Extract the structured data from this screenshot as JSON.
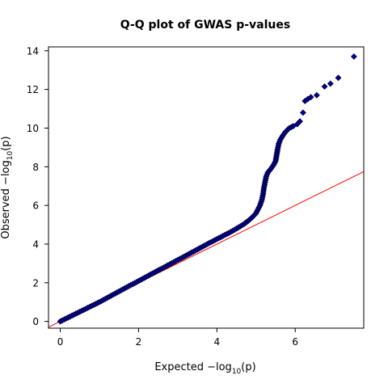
{
  "chart_data": {
    "type": "scatter",
    "title": "Q-Q plot of GWAS p-values",
    "xlabel": {
      "prefix": "Expected  −log",
      "sub": "10",
      "suffix": "(p)"
    },
    "ylabel": {
      "prefix": "Observed  −log",
      "sub": "10",
      "suffix": "(p)"
    },
    "xlim": [
      -0.3,
      7.75
    ],
    "ylim": [
      -0.35,
      14.2
    ],
    "xticks": [
      0,
      2,
      4,
      6
    ],
    "yticks": [
      0,
      2,
      4,
      6,
      8,
      10,
      12,
      14
    ],
    "grid": false,
    "legend": "none",
    "reference_line": {
      "slope": 1,
      "intercept": 0,
      "color": "#ff0000"
    },
    "marker": {
      "shape": "diamond",
      "fill": "#00008b",
      "stroke": "#000033"
    },
    "series": [
      {
        "values": [
          {
            "x": 0.0,
            "y": 0.0
          },
          {
            "x": 0.1,
            "y": 0.1
          },
          {
            "x": 0.2,
            "y": 0.2
          },
          {
            "x": 0.3,
            "y": 0.3
          },
          {
            "x": 0.4,
            "y": 0.4
          },
          {
            "x": 0.5,
            "y": 0.5
          },
          {
            "x": 0.6,
            "y": 0.6
          },
          {
            "x": 0.7,
            "y": 0.7
          },
          {
            "x": 0.8,
            "y": 0.8
          },
          {
            "x": 0.9,
            "y": 0.9
          },
          {
            "x": 1.0,
            "y": 1.0
          },
          {
            "x": 1.1,
            "y": 1.11
          },
          {
            "x": 1.2,
            "y": 1.22
          },
          {
            "x": 1.3,
            "y": 1.33
          },
          {
            "x": 1.4,
            "y": 1.44
          },
          {
            "x": 1.5,
            "y": 1.55
          },
          {
            "x": 1.6,
            "y": 1.66
          },
          {
            "x": 1.7,
            "y": 1.77
          },
          {
            "x": 1.8,
            "y": 1.88
          },
          {
            "x": 1.9,
            "y": 1.98
          },
          {
            "x": 2.0,
            "y": 2.09
          },
          {
            "x": 2.1,
            "y": 2.2
          },
          {
            "x": 2.2,
            "y": 2.31
          },
          {
            "x": 2.3,
            "y": 2.42
          },
          {
            "x": 2.4,
            "y": 2.53
          },
          {
            "x": 2.5,
            "y": 2.64
          },
          {
            "x": 2.6,
            "y": 2.74
          },
          {
            "x": 2.7,
            "y": 2.85
          },
          {
            "x": 2.8,
            "y": 2.96
          },
          {
            "x": 2.9,
            "y": 3.07
          },
          {
            "x": 3.0,
            "y": 3.18
          },
          {
            "x": 3.1,
            "y": 3.28
          },
          {
            "x": 3.2,
            "y": 3.39
          },
          {
            "x": 3.3,
            "y": 3.5
          },
          {
            "x": 3.4,
            "y": 3.61
          },
          {
            "x": 3.5,
            "y": 3.72
          },
          {
            "x": 3.6,
            "y": 3.83
          },
          {
            "x": 3.7,
            "y": 3.94
          },
          {
            "x": 3.8,
            "y": 4.05
          },
          {
            "x": 3.9,
            "y": 4.15
          },
          {
            "x": 4.0,
            "y": 4.26
          },
          {
            "x": 4.1,
            "y": 4.36
          },
          {
            "x": 4.2,
            "y": 4.47
          },
          {
            "x": 4.3,
            "y": 4.57
          },
          {
            "x": 4.4,
            "y": 4.68
          },
          {
            "x": 4.5,
            "y": 4.8
          },
          {
            "x": 4.6,
            "y": 4.92
          },
          {
            "x": 4.7,
            "y": 5.05
          },
          {
            "x": 4.8,
            "y": 5.2
          },
          {
            "x": 4.9,
            "y": 5.38
          },
          {
            "x": 5.0,
            "y": 5.6
          },
          {
            "x": 5.05,
            "y": 5.8
          },
          {
            "x": 5.1,
            "y": 6.0
          },
          {
            "x": 5.15,
            "y": 6.3
          },
          {
            "x": 5.18,
            "y": 6.6
          },
          {
            "x": 5.2,
            "y": 6.9
          },
          {
            "x": 5.23,
            "y": 7.2
          },
          {
            "x": 5.26,
            "y": 7.5
          },
          {
            "x": 5.3,
            "y": 7.7
          },
          {
            "x": 5.38,
            "y": 7.9
          },
          {
            "x": 5.45,
            "y": 8.1
          },
          {
            "x": 5.5,
            "y": 8.3
          },
          {
            "x": 5.55,
            "y": 8.9
          },
          {
            "x": 5.58,
            "y": 9.2
          },
          {
            "x": 5.62,
            "y": 9.4
          },
          {
            "x": 5.68,
            "y": 9.6
          },
          {
            "x": 5.75,
            "y": 9.8
          },
          {
            "x": 5.85,
            "y": 10.0
          },
          {
            "x": 5.95,
            "y": 10.1
          },
          {
            "x": 6.05,
            "y": 10.2
          },
          {
            "x": 6.12,
            "y": 10.35
          },
          {
            "x": 6.2,
            "y": 10.8
          },
          {
            "x": 6.25,
            "y": 11.4
          },
          {
            "x": 6.32,
            "y": 11.5
          },
          {
            "x": 6.4,
            "y": 11.6
          },
          {
            "x": 6.55,
            "y": 11.7
          },
          {
            "x": 6.75,
            "y": 12.15
          },
          {
            "x": 6.9,
            "y": 12.3
          },
          {
            "x": 7.1,
            "y": 12.6
          },
          {
            "x": 7.5,
            "y": 13.7
          }
        ]
      }
    ]
  }
}
